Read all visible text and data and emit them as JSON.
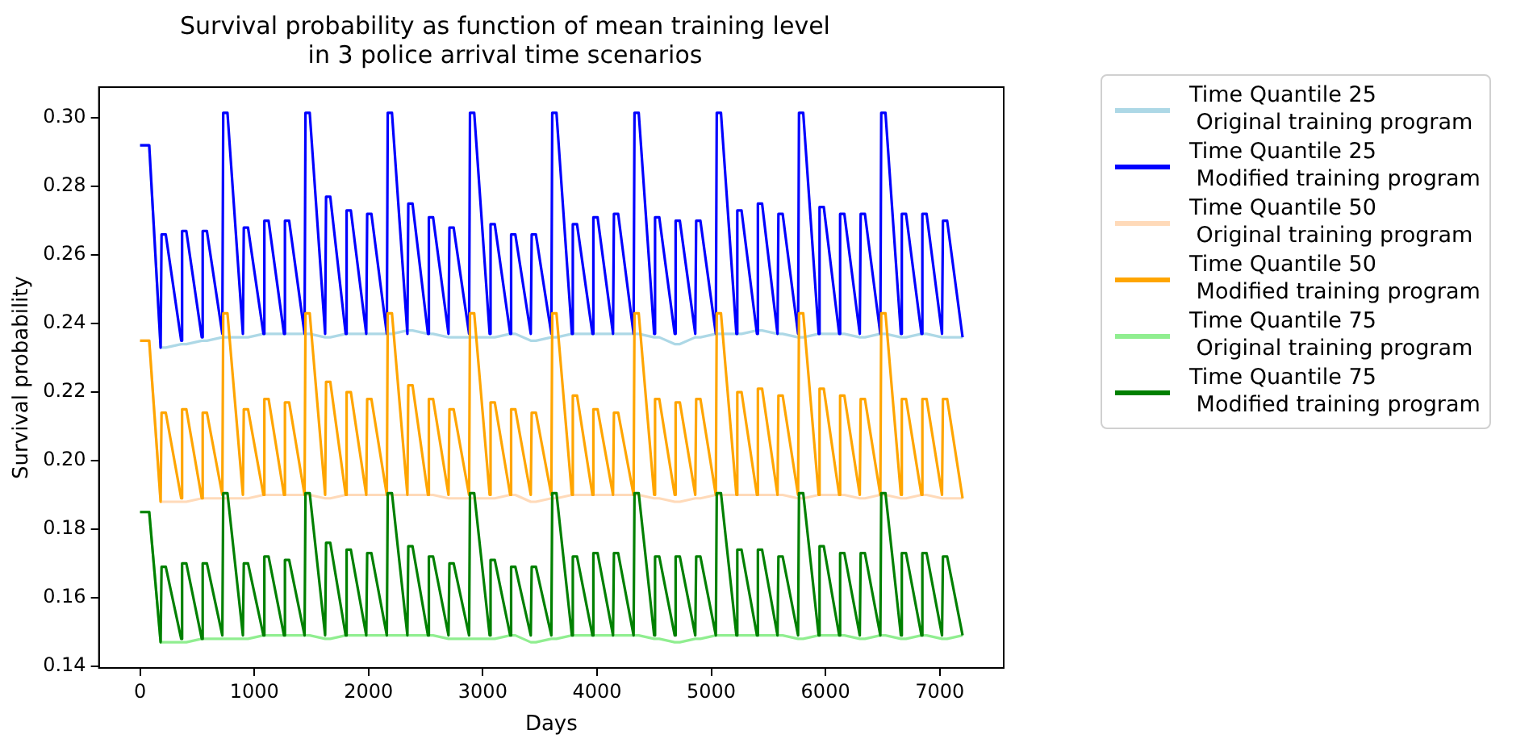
{
  "chart_data": {
    "type": "line",
    "title": "Survival probability as function of mean training level\nin 3 police arrival time scenarios",
    "xlabel": "Days",
    "ylabel": "Survival probability",
    "legend": "right",
    "grid": false,
    "xlim": [
      -360,
      7560
    ],
    "xticks": [
      0,
      1000,
      2000,
      3000,
      4000,
      5000,
      6000,
      7000
    ],
    "ylim": [
      0.1395,
      0.309
    ],
    "yticks": [
      0.14,
      0.16,
      0.18,
      {
        "value": 0.2,
        "label": "0.20"
      },
      0.22,
      0.24,
      0.26,
      0.28,
      {
        "value": 0.3,
        "label": "0.30"
      }
    ],
    "x": [
      0,
      80,
      180,
      188,
      225,
      360,
      368,
      405,
      540,
      548,
      585,
      720,
      728,
      765,
      900,
      908,
      945,
      1080,
      1088,
      1125,
      1260,
      1268,
      1305,
      1440,
      1448,
      1485,
      1620,
      1628,
      1665,
      1800,
      1808,
      1845,
      1980,
      1988,
      2025,
      2160,
      2168,
      2205,
      2340,
      2348,
      2385,
      2520,
      2528,
      2565,
      2700,
      2708,
      2745,
      2880,
      2888,
      2925,
      3060,
      3068,
      3105,
      3240,
      3248,
      3285,
      3420,
      3428,
      3465,
      3600,
      3608,
      3645,
      3780,
      3788,
      3825,
      3960,
      3968,
      4005,
      4140,
      4148,
      4185,
      4320,
      4328,
      4365,
      4500,
      4508,
      4545,
      4680,
      4688,
      4725,
      4860,
      4868,
      4905,
      5040,
      5048,
      5085,
      5220,
      5228,
      5265,
      5400,
      5408,
      5445,
      5580,
      5588,
      5625,
      5760,
      5768,
      5805,
      5940,
      5948,
      5985,
      6120,
      6128,
      6165,
      6300,
      6308,
      6345,
      6480,
      6488,
      6525,
      6660,
      6668,
      6705,
      6840,
      6848,
      6885,
      7020,
      7028,
      7065,
      7200
    ],
    "series": [
      {
        "name": "Time Quantile 25\n Original training program",
        "color": "#add8e6",
        "values": [
          0.292,
          0.292,
          0.233,
          0.233,
          0.233,
          0.234,
          0.234,
          0.234,
          0.235,
          0.235,
          0.235,
          0.236,
          0.236,
          0.236,
          0.236,
          0.236,
          0.236,
          0.237,
          0.237,
          0.237,
          0.237,
          0.237,
          0.237,
          0.237,
          0.237,
          0.237,
          0.236,
          0.236,
          0.236,
          0.237,
          0.237,
          0.237,
          0.237,
          0.237,
          0.237,
          0.237,
          0.237,
          0.237,
          0.238,
          0.238,
          0.238,
          0.237,
          0.237,
          0.237,
          0.236,
          0.236,
          0.236,
          0.236,
          0.236,
          0.236,
          0.236,
          0.236,
          0.236,
          0.237,
          0.237,
          0.237,
          0.235,
          0.235,
          0.235,
          0.236,
          0.236,
          0.236,
          0.237,
          0.237,
          0.237,
          0.237,
          0.237,
          0.237,
          0.237,
          0.237,
          0.237,
          0.237,
          0.237,
          0.237,
          0.236,
          0.236,
          0.236,
          0.234,
          0.234,
          0.234,
          0.236,
          0.236,
          0.236,
          0.237,
          0.237,
          0.237,
          0.237,
          0.237,
          0.237,
          0.238,
          0.238,
          0.238,
          0.237,
          0.237,
          0.237,
          0.236,
          0.236,
          0.236,
          0.237,
          0.237,
          0.237,
          0.237,
          0.237,
          0.237,
          0.236,
          0.236,
          0.236,
          0.237,
          0.237,
          0.237,
          0.236,
          0.236,
          0.236,
          0.237,
          0.237,
          0.237,
          0.236,
          0.236,
          0.236,
          0.236
        ]
      },
      {
        "name": "Time Quantile 25\n Modified training program",
        "color": "#0000ff",
        "values": [
          0.292,
          0.292,
          0.233,
          0.266,
          0.266,
          0.235,
          0.267,
          0.267,
          0.236,
          0.267,
          0.267,
          0.237,
          0.3015,
          0.3015,
          0.237,
          0.268,
          0.268,
          0.237,
          0.27,
          0.27,
          0.237,
          0.27,
          0.27,
          0.237,
          0.3015,
          0.3015,
          0.237,
          0.277,
          0.277,
          0.237,
          0.273,
          0.273,
          0.237,
          0.272,
          0.272,
          0.237,
          0.3015,
          0.3015,
          0.237,
          0.275,
          0.275,
          0.237,
          0.271,
          0.271,
          0.237,
          0.268,
          0.268,
          0.237,
          0.3015,
          0.3015,
          0.237,
          0.269,
          0.269,
          0.237,
          0.266,
          0.266,
          0.237,
          0.266,
          0.266,
          0.237,
          0.3015,
          0.3015,
          0.237,
          0.269,
          0.269,
          0.237,
          0.271,
          0.271,
          0.237,
          0.272,
          0.272,
          0.237,
          0.3015,
          0.3015,
          0.237,
          0.271,
          0.271,
          0.237,
          0.27,
          0.27,
          0.237,
          0.27,
          0.27,
          0.237,
          0.3015,
          0.3015,
          0.237,
          0.273,
          0.273,
          0.237,
          0.275,
          0.275,
          0.237,
          0.272,
          0.272,
          0.237,
          0.3015,
          0.3015,
          0.237,
          0.274,
          0.274,
          0.237,
          0.272,
          0.272,
          0.237,
          0.272,
          0.272,
          0.237,
          0.3015,
          0.3015,
          0.237,
          0.272,
          0.272,
          0.237,
          0.272,
          0.272,
          0.237,
          0.27,
          0.27,
          0.236
        ]
      },
      {
        "name": "Time Quantile 50\n Original training program",
        "color": "#ffdab9",
        "values": [
          0.235,
          0.235,
          0.188,
          0.188,
          0.188,
          0.188,
          0.188,
          0.188,
          0.189,
          0.189,
          0.189,
          0.189,
          0.189,
          0.189,
          0.189,
          0.189,
          0.189,
          0.19,
          0.19,
          0.19,
          0.19,
          0.19,
          0.19,
          0.19,
          0.19,
          0.19,
          0.189,
          0.189,
          0.189,
          0.19,
          0.19,
          0.19,
          0.19,
          0.19,
          0.19,
          0.19,
          0.19,
          0.19,
          0.19,
          0.19,
          0.19,
          0.19,
          0.19,
          0.19,
          0.189,
          0.189,
          0.189,
          0.189,
          0.189,
          0.189,
          0.189,
          0.189,
          0.189,
          0.19,
          0.19,
          0.19,
          0.188,
          0.188,
          0.188,
          0.189,
          0.189,
          0.189,
          0.19,
          0.19,
          0.19,
          0.19,
          0.19,
          0.19,
          0.19,
          0.19,
          0.19,
          0.19,
          0.19,
          0.19,
          0.189,
          0.189,
          0.189,
          0.188,
          0.188,
          0.188,
          0.189,
          0.189,
          0.189,
          0.19,
          0.19,
          0.19,
          0.19,
          0.19,
          0.19,
          0.19,
          0.19,
          0.19,
          0.19,
          0.19,
          0.19,
          0.189,
          0.189,
          0.189,
          0.19,
          0.19,
          0.19,
          0.19,
          0.19,
          0.19,
          0.189,
          0.189,
          0.189,
          0.19,
          0.19,
          0.19,
          0.189,
          0.189,
          0.189,
          0.19,
          0.19,
          0.19,
          0.189,
          0.189,
          0.189,
          0.189
        ]
      },
      {
        "name": "Time Quantile 50\n Modified training program",
        "color": "#ffa500",
        "values": [
          0.235,
          0.235,
          0.188,
          0.214,
          0.214,
          0.189,
          0.215,
          0.215,
          0.189,
          0.214,
          0.214,
          0.19,
          0.243,
          0.243,
          0.19,
          0.215,
          0.215,
          0.19,
          0.218,
          0.218,
          0.19,
          0.217,
          0.217,
          0.19,
          0.243,
          0.243,
          0.19,
          0.223,
          0.223,
          0.19,
          0.22,
          0.22,
          0.19,
          0.218,
          0.218,
          0.19,
          0.243,
          0.243,
          0.19,
          0.222,
          0.222,
          0.19,
          0.218,
          0.218,
          0.19,
          0.215,
          0.215,
          0.19,
          0.243,
          0.243,
          0.19,
          0.217,
          0.217,
          0.19,
          0.215,
          0.215,
          0.19,
          0.214,
          0.214,
          0.19,
          0.243,
          0.243,
          0.19,
          0.219,
          0.219,
          0.19,
          0.215,
          0.215,
          0.19,
          0.214,
          0.214,
          0.19,
          0.243,
          0.243,
          0.19,
          0.218,
          0.218,
          0.19,
          0.217,
          0.217,
          0.19,
          0.218,
          0.218,
          0.19,
          0.243,
          0.243,
          0.19,
          0.22,
          0.22,
          0.19,
          0.221,
          0.221,
          0.19,
          0.219,
          0.219,
          0.19,
          0.243,
          0.243,
          0.19,
          0.221,
          0.221,
          0.19,
          0.219,
          0.219,
          0.19,
          0.218,
          0.218,
          0.19,
          0.243,
          0.243,
          0.19,
          0.218,
          0.218,
          0.19,
          0.218,
          0.218,
          0.19,
          0.218,
          0.218,
          0.189
        ]
      },
      {
        "name": "Time Quantile 75\n Original training program",
        "color": "#90ee90",
        "values": [
          0.185,
          0.185,
          0.147,
          0.147,
          0.147,
          0.147,
          0.147,
          0.147,
          0.148,
          0.148,
          0.148,
          0.148,
          0.148,
          0.148,
          0.148,
          0.148,
          0.148,
          0.149,
          0.149,
          0.149,
          0.149,
          0.149,
          0.149,
          0.149,
          0.149,
          0.149,
          0.148,
          0.148,
          0.148,
          0.149,
          0.149,
          0.149,
          0.149,
          0.149,
          0.149,
          0.149,
          0.149,
          0.149,
          0.149,
          0.149,
          0.149,
          0.149,
          0.149,
          0.149,
          0.148,
          0.148,
          0.148,
          0.148,
          0.148,
          0.148,
          0.148,
          0.148,
          0.148,
          0.149,
          0.149,
          0.149,
          0.147,
          0.147,
          0.147,
          0.148,
          0.148,
          0.148,
          0.149,
          0.149,
          0.149,
          0.149,
          0.149,
          0.149,
          0.149,
          0.149,
          0.149,
          0.149,
          0.149,
          0.149,
          0.148,
          0.148,
          0.148,
          0.147,
          0.147,
          0.147,
          0.148,
          0.148,
          0.148,
          0.149,
          0.149,
          0.149,
          0.149,
          0.149,
          0.149,
          0.149,
          0.149,
          0.149,
          0.149,
          0.149,
          0.149,
          0.148,
          0.148,
          0.148,
          0.149,
          0.149,
          0.149,
          0.149,
          0.149,
          0.149,
          0.148,
          0.148,
          0.148,
          0.149,
          0.149,
          0.149,
          0.148,
          0.148,
          0.148,
          0.149,
          0.149,
          0.149,
          0.148,
          0.148,
          0.148,
          0.149
        ]
      },
      {
        "name": "Time Quantile 75\n Modified training program",
        "color": "#008000",
        "values": [
          0.185,
          0.185,
          0.147,
          0.169,
          0.169,
          0.148,
          0.17,
          0.17,
          0.148,
          0.17,
          0.17,
          0.149,
          0.1905,
          0.1905,
          0.149,
          0.17,
          0.17,
          0.149,
          0.172,
          0.172,
          0.149,
          0.171,
          0.171,
          0.149,
          0.1905,
          0.1905,
          0.149,
          0.176,
          0.176,
          0.149,
          0.174,
          0.174,
          0.149,
          0.173,
          0.173,
          0.149,
          0.1905,
          0.1905,
          0.149,
          0.175,
          0.175,
          0.149,
          0.172,
          0.172,
          0.149,
          0.17,
          0.17,
          0.149,
          0.1905,
          0.1905,
          0.149,
          0.171,
          0.171,
          0.149,
          0.169,
          0.169,
          0.149,
          0.169,
          0.169,
          0.149,
          0.1905,
          0.1905,
          0.149,
          0.172,
          0.172,
          0.149,
          0.173,
          0.173,
          0.149,
          0.173,
          0.173,
          0.149,
          0.1905,
          0.1905,
          0.149,
          0.172,
          0.172,
          0.149,
          0.172,
          0.172,
          0.149,
          0.172,
          0.172,
          0.149,
          0.1905,
          0.1905,
          0.149,
          0.174,
          0.174,
          0.149,
          0.174,
          0.174,
          0.149,
          0.172,
          0.172,
          0.149,
          0.1905,
          0.1905,
          0.149,
          0.175,
          0.175,
          0.149,
          0.173,
          0.173,
          0.149,
          0.173,
          0.173,
          0.149,
          0.1905,
          0.1905,
          0.149,
          0.173,
          0.173,
          0.149,
          0.173,
          0.173,
          0.149,
          0.172,
          0.172,
          0.149
        ]
      }
    ]
  }
}
